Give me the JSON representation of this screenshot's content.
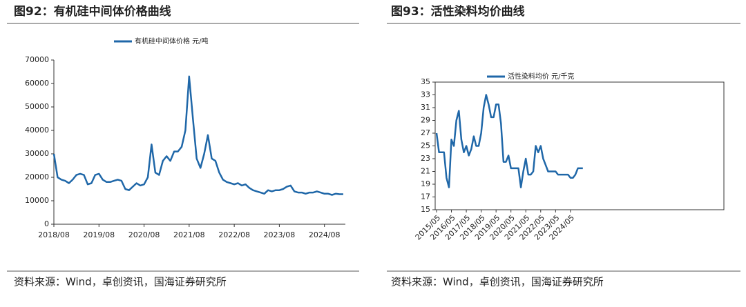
{
  "chart_data": [
    {
      "type": "line",
      "title": "图92：有机硅中间体价格曲线",
      "source": "资料来源：Wind，卓创资讯，国海证券研究所",
      "x": [
        "2018/08",
        "2018/09",
        "2018/10",
        "2018/11",
        "2018/12",
        "2019/01",
        "2019/02",
        "2019/03",
        "2019/04",
        "2019/05",
        "2019/06",
        "2019/07",
        "2019/08",
        "2019/09",
        "2019/10",
        "2019/11",
        "2019/12",
        "2020/01",
        "2020/02",
        "2020/03",
        "2020/04",
        "2020/05",
        "2020/06",
        "2020/07",
        "2020/08",
        "2020/09",
        "2020/10",
        "2020/11",
        "2020/12",
        "2021/01",
        "2021/02",
        "2021/03",
        "2021/04",
        "2021/05",
        "2021/06",
        "2021/07",
        "2021/08",
        "2021/09",
        "2021/10",
        "2021/11",
        "2021/12",
        "2022/01",
        "2022/02",
        "2022/03",
        "2022/04",
        "2022/05",
        "2022/06",
        "2022/07",
        "2022/08",
        "2022/09",
        "2022/10",
        "2022/11",
        "2022/12",
        "2023/01",
        "2023/02",
        "2023/03",
        "2023/04",
        "2023/05",
        "2023/06",
        "2023/07",
        "2023/08",
        "2023/09",
        "2023/10",
        "2023/11",
        "2023/12",
        "2024/01",
        "2024/02",
        "2024/03",
        "2024/04",
        "2024/05",
        "2024/06",
        "2024/07",
        "2024/08",
        "2024/09",
        "2024/10",
        "2024/11",
        "2024/12",
        "2025/01"
      ],
      "xticks": [
        "2018/08",
        "2019/08",
        "2020/08",
        "2021/08",
        "2022/08",
        "2023/08",
        "2024/08"
      ],
      "series": [
        {
          "name": "有机硅中间体价格 元/吨",
          "color": "#1f67a8",
          "values": [
            30000,
            20000,
            19000,
            18500,
            17500,
            19000,
            21000,
            21500,
            21000,
            17000,
            17500,
            21000,
            21500,
            19000,
            18000,
            18000,
            18500,
            19000,
            18500,
            15000,
            14500,
            16000,
            17500,
            16500,
            17000,
            20000,
            34000,
            22000,
            21000,
            27000,
            29000,
            27000,
            31000,
            31000,
            33000,
            40000,
            63000,
            45000,
            28000,
            24000,
            30000,
            38000,
            28000,
            27000,
            22000,
            19000,
            18000,
            17500,
            17000,
            17500,
            16500,
            17000,
            15500,
            14500,
            14000,
            13500,
            13000,
            14500,
            14000,
            14500,
            14500,
            15000,
            16000,
            16500,
            14000,
            13500,
            13500,
            13000,
            13500,
            13500,
            14000,
            13500,
            13000,
            13000,
            12500,
            13000,
            12800,
            12800
          ]
        }
      ],
      "ylim": [
        0,
        70000
      ],
      "yticks": [
        0,
        10000,
        20000,
        30000,
        40000,
        50000,
        60000,
        70000
      ]
    },
    {
      "type": "line",
      "title": "图93：活性染料均价曲线",
      "source": "资料来源：Wind，卓创资讯，国海证券研究所",
      "x": [
        "2015/05",
        "2015/07",
        "2015/09",
        "2015/11",
        "2016/01",
        "2016/03",
        "2016/05",
        "2016/07",
        "2016/09",
        "2016/11",
        "2017/01",
        "2017/03",
        "2017/05",
        "2017/07",
        "2017/09",
        "2017/11",
        "2018/01",
        "2018/03",
        "2018/05",
        "2018/07",
        "2018/09",
        "2018/11",
        "2019/01",
        "2019/03",
        "2019/05",
        "2019/07",
        "2019/09",
        "2019/11",
        "2020/01",
        "2020/03",
        "2020/05",
        "2020/07",
        "2020/09",
        "2020/11",
        "2021/01",
        "2021/03",
        "2021/05",
        "2021/07",
        "2021/09",
        "2021/11",
        "2022/01",
        "2022/03",
        "2022/05",
        "2022/07",
        "2022/09",
        "2022/11",
        "2023/01",
        "2023/03",
        "2023/05",
        "2023/07",
        "2023/09",
        "2023/11",
        "2024/01",
        "2024/03",
        "2024/05",
        "2024/07",
        "2024/09",
        "2024/11",
        "2025/01",
        "2025/03"
      ],
      "xticks": [
        "2015/05",
        "2016/05",
        "2017/05",
        "2018/05",
        "2019/05",
        "2020/05",
        "2021/05",
        "2022/05",
        "2023/05",
        "2024/05"
      ],
      "series": [
        {
          "name": "活性染料均价 元/千克",
          "color": "#1f67a8",
          "values": [
            27,
            24,
            24,
            24,
            20,
            18.5,
            26,
            25,
            29,
            30.5,
            26,
            24,
            25,
            23.5,
            24.5,
            26.5,
            25,
            25,
            27,
            31,
            33,
            31.5,
            29.5,
            29.5,
            31.5,
            31.5,
            28.5,
            22.5,
            22.5,
            23.5,
            21.5,
            21.5,
            21.5,
            21.5,
            18.5,
            21,
            23,
            20.5,
            20.5,
            21,
            25,
            24,
            25,
            23,
            22,
            21,
            21,
            21,
            21,
            20.5,
            20.5,
            20.5,
            20.5,
            20.5,
            20,
            20,
            20.5,
            21.5,
            21.5,
            21.5
          ]
        }
      ],
      "ylim": [
        15,
        35
      ],
      "yticks": [
        15,
        17,
        19,
        21,
        23,
        25,
        27,
        29,
        31,
        33,
        35
      ]
    }
  ]
}
